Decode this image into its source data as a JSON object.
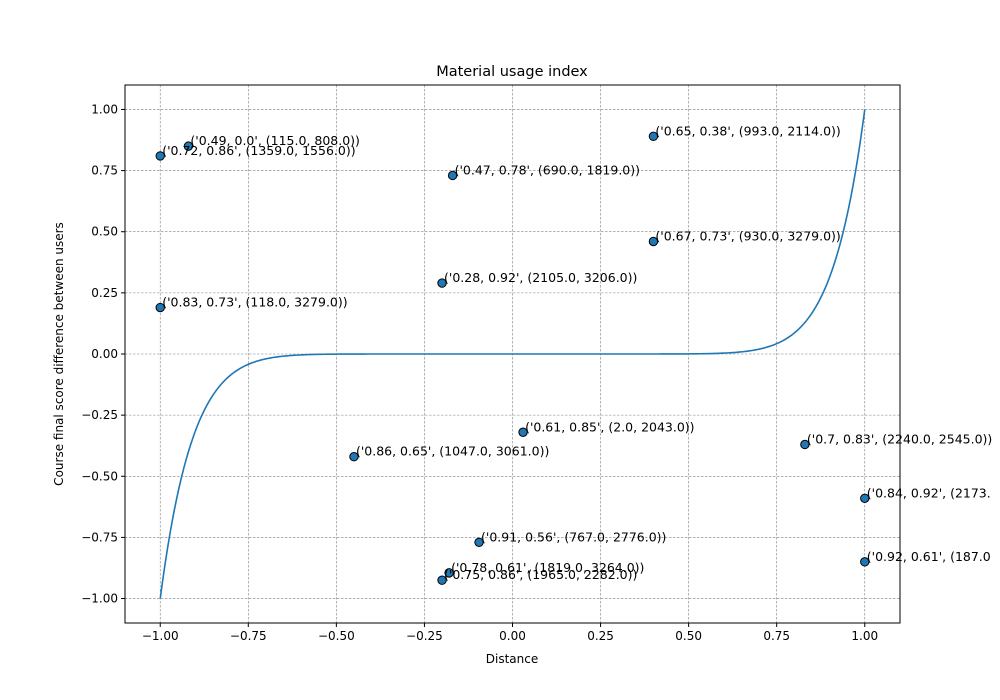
{
  "chart_data": {
    "type": "scatter",
    "title": "Material usage index",
    "xlabel": "Distance",
    "ylabel": "Course final score difference between users",
    "xlim": [
      -1.1,
      1.1
    ],
    "ylim": [
      -1.1,
      1.1
    ],
    "x_ticks": [
      -1.0,
      -0.75,
      -0.5,
      -0.25,
      0.0,
      0.25,
      0.5,
      0.75,
      1.0
    ],
    "x_tick_labels": [
      "−1.00",
      "−0.75",
      "−0.50",
      "−0.25",
      "0.00",
      "0.25",
      "0.50",
      "0.75",
      "1.00"
    ],
    "y_ticks": [
      -1.0,
      -0.75,
      -0.5,
      -0.25,
      0.0,
      0.25,
      0.5,
      0.75,
      1.0
    ],
    "y_tick_labels": [
      "−1.00",
      "−0.75",
      "−0.50",
      "−0.25",
      "0.00",
      "0.25",
      "0.50",
      "0.75",
      "1.00"
    ],
    "grid": true,
    "curve": {
      "function": "x^11",
      "x_range": [
        -1.0,
        1.0
      ],
      "color": "#1f77b4"
    },
    "point_color": "#1f77b4",
    "points": [
      {
        "x": -0.92,
        "y": 0.85,
        "label": "('0.49, 0.0', (115.0, 808.0))"
      },
      {
        "x": -1.0,
        "y": 0.81,
        "label": "('0.72, 0.86', (1359.0, 1556.0))"
      },
      {
        "x": 0.4,
        "y": 0.89,
        "label": "('0.65, 0.38', (993.0, 2114.0))"
      },
      {
        "x": -0.17,
        "y": 0.73,
        "label": "('0.47, 0.78', (690.0, 1819.0))"
      },
      {
        "x": 0.4,
        "y": 0.46,
        "label": "('0.67, 0.73', (930.0, 3279.0))"
      },
      {
        "x": -0.2,
        "y": 0.29,
        "label": "('0.28, 0.92', (2105.0, 3206.0))"
      },
      {
        "x": -1.0,
        "y": 0.19,
        "label": "('0.83, 0.73', (118.0, 3279.0))"
      },
      {
        "x": 0.03,
        "y": -0.32,
        "label": "('0.61, 0.85', (2.0, 2043.0))"
      },
      {
        "x": 0.83,
        "y": -0.37,
        "label": "('0.7, 0.83', (2240.0, 2545.0))"
      },
      {
        "x": -0.45,
        "y": -0.42,
        "label": "('0.86, 0.65', (1047.0, 3061.0))"
      },
      {
        "x": 1.0,
        "y": -0.59,
        "label": "('0.84, 0.92', (2173."
      },
      {
        "x": -0.095,
        "y": -0.77,
        "label": "('0.91, 0.56', (767.0, 2776.0))"
      },
      {
        "x": 1.0,
        "y": -0.85,
        "label": "('0.92, 0.61', (187.0"
      },
      {
        "x": -0.18,
        "y": -0.895,
        "label": "('0.78, 0.61', (1819.0, 3264.0))"
      },
      {
        "x": -0.2,
        "y": -0.925,
        "label": "('0.75, 0.86', (1965.0, 2282.0))"
      }
    ]
  }
}
